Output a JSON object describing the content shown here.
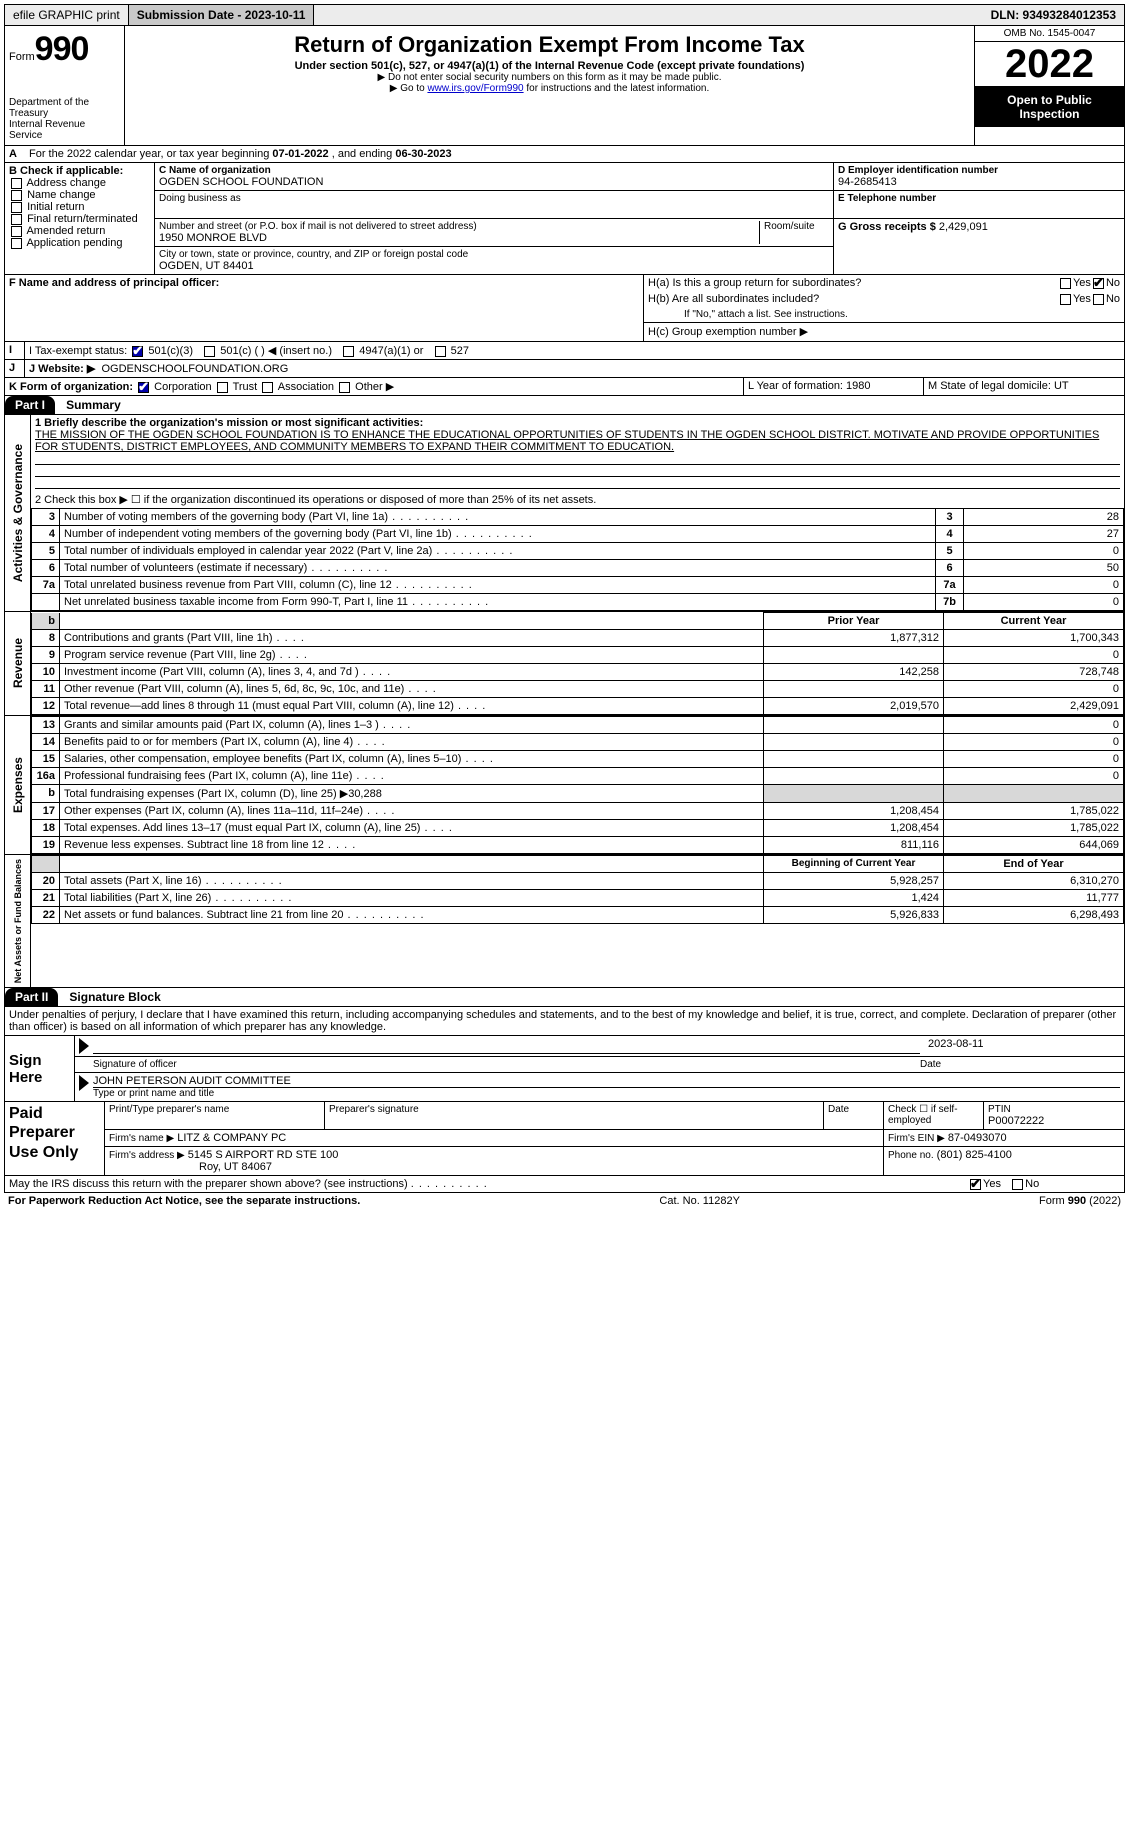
{
  "topbar": {
    "efile": "efile GRAPHIC print",
    "submission_label": "Submission Date - 2023-10-11",
    "dln": "DLN: 93493284012353"
  },
  "form": {
    "form_word": "Form",
    "form_number": "990",
    "title": "Return of Organization Exempt From Income Tax",
    "subtitle": "Under section 501(c), 527, or 4947(a)(1) of the Internal Revenue Code (except private foundations)",
    "note1": "▶ Do not enter social security numbers on this form as it may be made public.",
    "note2_prefix": "▶ Go to ",
    "note2_link": "www.irs.gov/Form990",
    "note2_suffix": " for instructions and the latest information.",
    "dept": "Department of the Treasury",
    "irs": "Internal Revenue Service",
    "omb": "OMB No. 1545-0047",
    "tax_year": "2022",
    "open_public": "Open to Public Inspection"
  },
  "line_a": {
    "text_prefix": "For the 2022 calendar year, or tax year beginning ",
    "begin": "07-01-2022",
    "mid": " , and ending ",
    "end": "06-30-2023"
  },
  "box_b": {
    "label": "B Check if applicable:",
    "items": [
      "Address change",
      "Name change",
      "Initial return",
      "Final return/terminated",
      "Amended return",
      "Application pending"
    ]
  },
  "box_c": {
    "name_label": "C Name of organization",
    "name": "OGDEN SCHOOL FOUNDATION",
    "dba_label": "Doing business as",
    "addr_label": "Number and street (or P.O. box if mail is not delivered to street address)",
    "room_label": "Room/suite",
    "addr": "1950 MONROE BLVD",
    "city_label": "City or town, state or province, country, and ZIP or foreign postal code",
    "city": "OGDEN, UT  84401"
  },
  "box_d": {
    "label": "D Employer identification number",
    "value": "94-2685413"
  },
  "box_e": {
    "label": "E Telephone number",
    "value": ""
  },
  "box_g": {
    "label": "G Gross receipts $",
    "value": "2,429,091"
  },
  "box_f": {
    "label": "F  Name and address of principal officer:"
  },
  "box_h": {
    "a": "H(a)  Is this a group return for subordinates?",
    "b": "H(b)  Are all subordinates included?",
    "b_note": "If \"No,\" attach a list. See instructions.",
    "c": "H(c)  Group exemption number ▶",
    "yes": "Yes",
    "no": "No"
  },
  "box_i": {
    "label": "I   Tax-exempt status:",
    "opt1": "501(c)(3)",
    "opt2": "501(c) (  ) ◀ (insert no.)",
    "opt3": "4947(a)(1) or",
    "opt4": "527"
  },
  "box_j": {
    "label": "J   Website: ▶",
    "value": "OGDENSCHOOLFOUNDATION.ORG"
  },
  "box_k": {
    "label": "K Form of organization:",
    "opts": [
      "Corporation",
      "Trust",
      "Association",
      "Other ▶"
    ]
  },
  "box_l": {
    "label": "L Year of formation: 1980"
  },
  "box_m": {
    "label": "M State of legal domicile: UT"
  },
  "part1": {
    "hdr": "Part I",
    "title": "Summary",
    "line1_label": "1  Briefly describe the organization's mission or most significant activities:",
    "mission": "THE MISSION OF THE OGDEN SCHOOL FOUNDATION IS TO ENHANCE THE EDUCATIONAL OPPORTUNITIES OF STUDENTS IN THE OGDEN SCHOOL DISTRICT. MOTIVATE AND PROVIDE OPPORTUNITIES FOR STUDENTS, DISTRICT EMPLOYEES, AND COMMUNITY MEMBERS TO EXPAND THEIR COMMITMENT TO EDUCATION.",
    "line2": "2   Check this box ▶ ☐  if the organization discontinued its operations or disposed of more than 25% of its net assets.",
    "gov_lines": [
      {
        "n": "3",
        "t": "Number of voting members of the governing body (Part VI, line 1a)",
        "box": "3",
        "v": "28"
      },
      {
        "n": "4",
        "t": "Number of independent voting members of the governing body (Part VI, line 1b)",
        "box": "4",
        "v": "27"
      },
      {
        "n": "5",
        "t": "Total number of individuals employed in calendar year 2022 (Part V, line 2a)",
        "box": "5",
        "v": "0"
      },
      {
        "n": "6",
        "t": "Total number of volunteers (estimate if necessary)",
        "box": "6",
        "v": "50"
      },
      {
        "n": "7a",
        "t": "Total unrelated business revenue from Part VIII, column (C), line 12",
        "box": "7a",
        "v": "0"
      },
      {
        "n": "",
        "t": "Net unrelated business taxable income from Form 990-T, Part I, line 11",
        "box": "7b",
        "v": "0"
      }
    ],
    "col_prior": "Prior Year",
    "col_current": "Current Year",
    "rev_lines": [
      {
        "n": "8",
        "t": "Contributions and grants (Part VIII, line 1h)",
        "p": "1,877,312",
        "c": "1,700,343"
      },
      {
        "n": "9",
        "t": "Program service revenue (Part VIII, line 2g)",
        "p": "",
        "c": "0"
      },
      {
        "n": "10",
        "t": "Investment income (Part VIII, column (A), lines 3, 4, and 7d )",
        "p": "142,258",
        "c": "728,748"
      },
      {
        "n": "11",
        "t": "Other revenue (Part VIII, column (A), lines 5, 6d, 8c, 9c, 10c, and 11e)",
        "p": "",
        "c": "0"
      },
      {
        "n": "12",
        "t": "Total revenue—add lines 8 through 11 (must equal Part VIII, column (A), line 12)",
        "p": "2,019,570",
        "c": "2,429,091"
      }
    ],
    "exp_lines": [
      {
        "n": "13",
        "t": "Grants and similar amounts paid (Part IX, column (A), lines 1–3 )",
        "p": "",
        "c": "0"
      },
      {
        "n": "14",
        "t": "Benefits paid to or for members (Part IX, column (A), line 4)",
        "p": "",
        "c": "0"
      },
      {
        "n": "15",
        "t": "Salaries, other compensation, employee benefits (Part IX, column (A), lines 5–10)",
        "p": "",
        "c": "0"
      },
      {
        "n": "16a",
        "t": "Professional fundraising fees (Part IX, column (A), line 11e)",
        "p": "",
        "c": "0"
      },
      {
        "n": "b",
        "t": "Total fundraising expenses (Part IX, column (D), line 25) ▶30,288",
        "p": "shade",
        "c": "shade"
      },
      {
        "n": "17",
        "t": "Other expenses (Part IX, column (A), lines 11a–11d, 11f–24e)",
        "p": "1,208,454",
        "c": "1,785,022"
      },
      {
        "n": "18",
        "t": "Total expenses. Add lines 13–17 (must equal Part IX, column (A), line 25)",
        "p": "1,208,454",
        "c": "1,785,022"
      },
      {
        "n": "19",
        "t": "Revenue less expenses. Subtract line 18 from line 12",
        "p": "811,116",
        "c": "644,069"
      }
    ],
    "col_begin": "Beginning of Current Year",
    "col_end": "End of Year",
    "na_lines": [
      {
        "n": "20",
        "t": "Total assets (Part X, line 16)",
        "p": "5,928,257",
        "c": "6,310,270"
      },
      {
        "n": "21",
        "t": "Total liabilities (Part X, line 26)",
        "p": "1,424",
        "c": "11,777"
      },
      {
        "n": "22",
        "t": "Net assets or fund balances. Subtract line 21 from line 20",
        "p": "5,926,833",
        "c": "6,298,493"
      }
    ],
    "tab_gov": "Activities & Governance",
    "tab_rev": "Revenue",
    "tab_exp": "Expenses",
    "tab_na": "Net Assets or Fund Balances"
  },
  "part2": {
    "hdr": "Part II",
    "title": "Signature Block",
    "perjury": "Under penalties of perjury, I declare that I have examined this return, including accompanying schedules and statements, and to the best of my knowledge and belief, it is true, correct, and complete. Declaration of preparer (other than officer) is based on all information of which preparer has any knowledge.",
    "sign_here": "Sign Here",
    "sig_officer": "Signature of officer",
    "sig_date": "2023-08-11",
    "date_label": "Date",
    "officer_name": "JOHN PETERSON  AUDIT COMMITTEE",
    "type_name": "Type or print name and title",
    "paid": "Paid Preparer Use Only",
    "prep_name_label": "Print/Type preparer's name",
    "prep_sig_label": "Preparer's signature",
    "prep_date_label": "Date",
    "self_emp": "Check ☐ if self-employed",
    "ptin_label": "PTIN",
    "ptin": "P00072222",
    "firm_name_label": "Firm's name  ▶",
    "firm_name": "LITZ & COMPANY PC",
    "firm_ein_label": "Firm's EIN ▶",
    "firm_ein": "87-0493070",
    "firm_addr_label": "Firm's address ▶",
    "firm_addr1": "5145 S AIRPORT RD STE 100",
    "firm_addr2": "Roy, UT  84067",
    "phone_label": "Phone no.",
    "phone": "(801) 825-4100",
    "discuss": "May the IRS discuss this return with the preparer shown above? (see instructions)",
    "yes": "Yes",
    "no": "No"
  },
  "footer": {
    "left": "For Paperwork Reduction Act Notice, see the separate instructions.",
    "mid": "Cat. No. 11282Y",
    "right": "Form 990 (2022)"
  }
}
